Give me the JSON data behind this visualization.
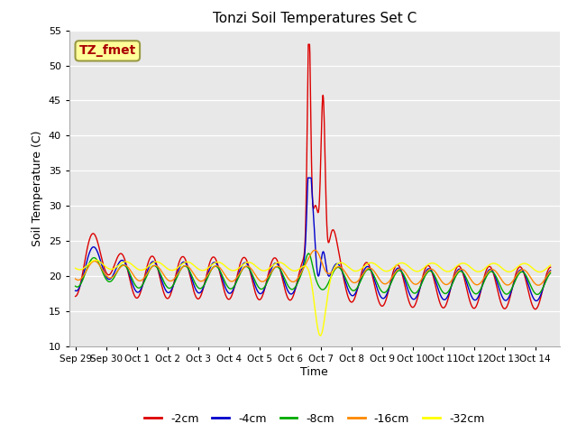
{
  "title": "Tonzi Soil Temperatures Set C",
  "xlabel": "Time",
  "ylabel": "Soil Temperature (C)",
  "ylim": [
    10,
    55
  ],
  "yticks": [
    10,
    15,
    20,
    25,
    30,
    35,
    40,
    45,
    50,
    55
  ],
  "fig_bg": "#ffffff",
  "plot_bg": "#e8e8e8",
  "grid_color": "#ffffff",
  "series_colors": [
    "#dd0000",
    "#0000cc",
    "#00aa00",
    "#ff8800",
    "#ffff00"
  ],
  "series_labels": [
    "-2cm",
    "-4cm",
    "-8cm",
    "-16cm",
    "-32cm"
  ],
  "annotation_text": "TZ_fmet",
  "annotation_color": "#aa0000",
  "annotation_bg": "#ffff99",
  "annotation_edge": "#999944",
  "xtick_labels": [
    "Sep 29",
    "Sep 30",
    "Oct 1",
    "Oct 2",
    "Oct 3",
    "Oct 4",
    "Oct 5",
    "Oct 6",
    "Oct 7",
    "Oct 8",
    "Oct 9",
    "Oct 10",
    "Oct 11",
    "Oct 12",
    "Oct 13",
    "Oct 14"
  ],
  "xmin": 0,
  "xmax": 15.5
}
